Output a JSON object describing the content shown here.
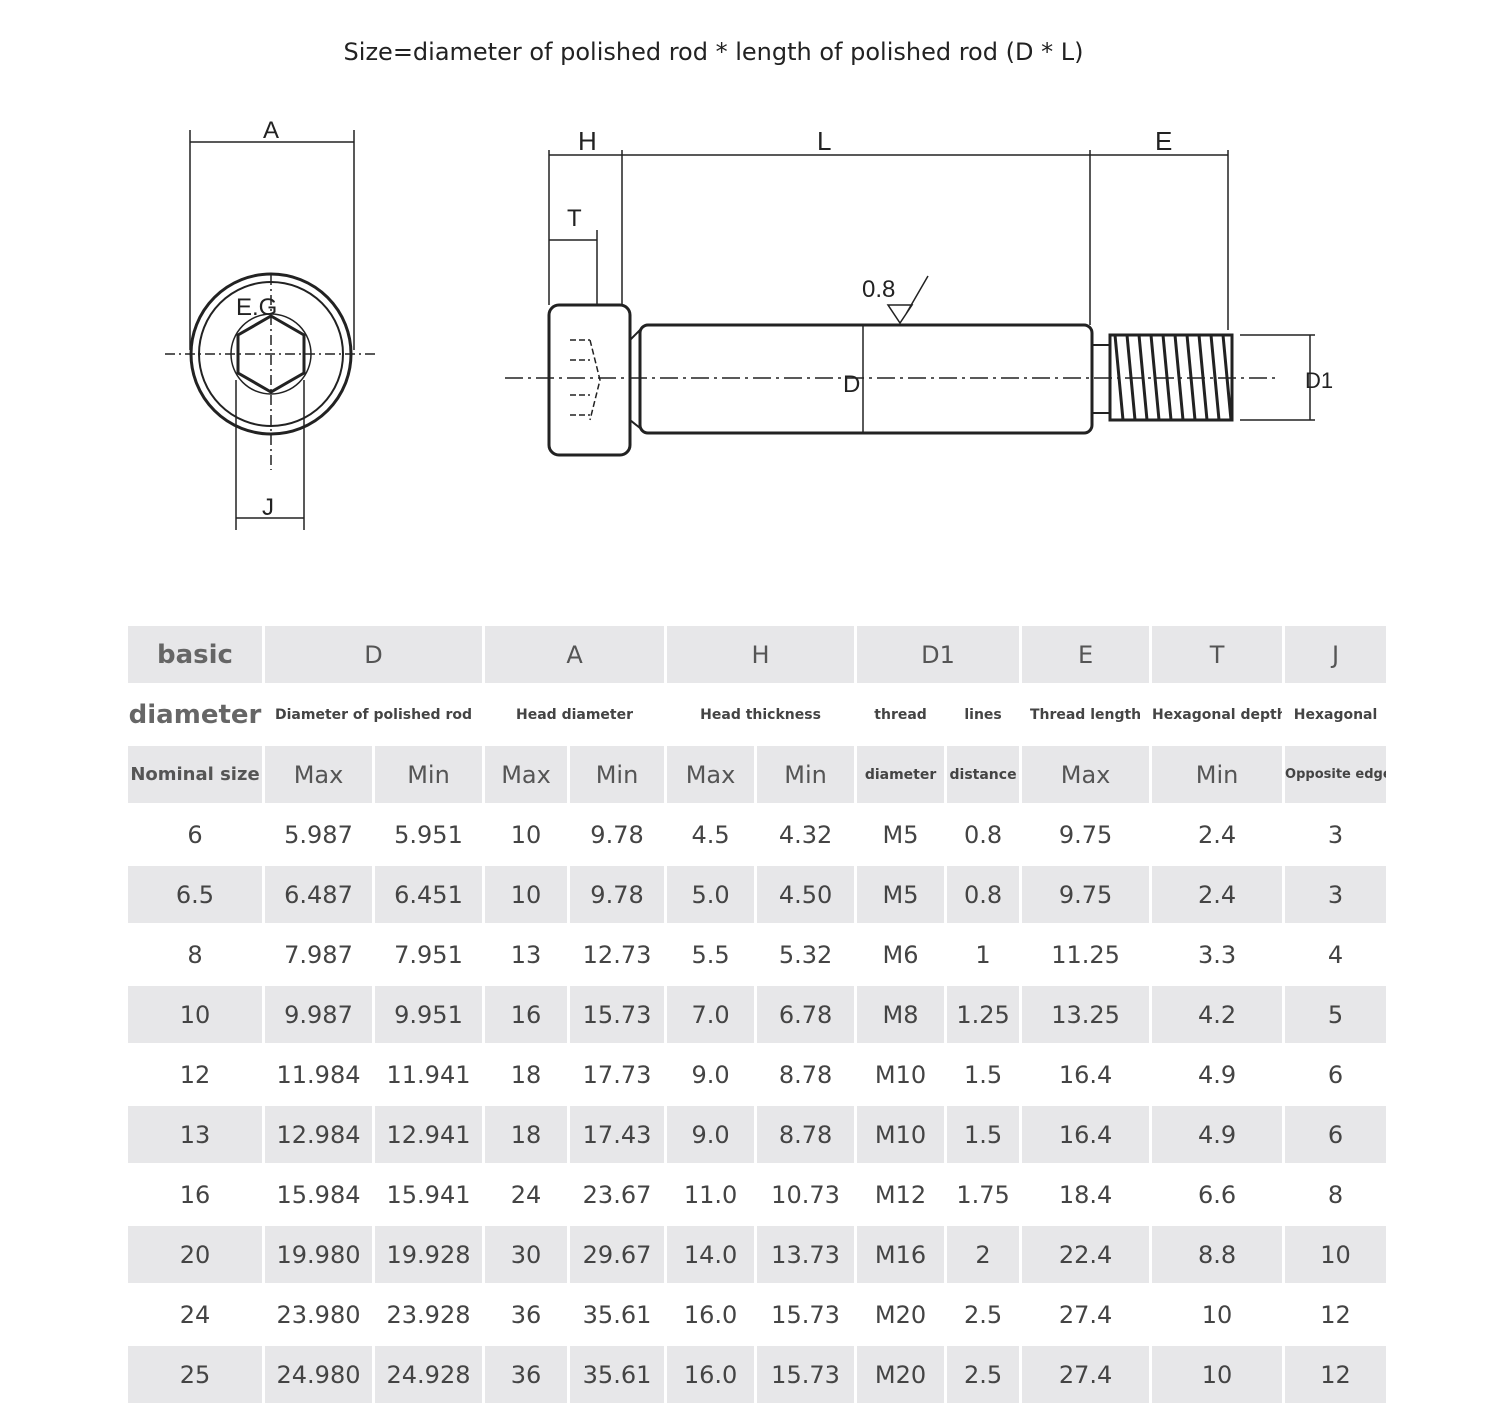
{
  "title": "Size=diameter of polished rod * length of polished rod (D * L)",
  "drawing": {
    "front_view": {
      "label_A": "A",
      "label_EG": "E.G",
      "label_J": "J"
    },
    "side_view": {
      "label_H": "H",
      "label_L": "L",
      "label_E": "E",
      "label_T": "T",
      "roughness": "0.8",
      "label_D": "D",
      "label_D1": "D1"
    }
  },
  "table": {
    "header1": [
      "basic",
      "D",
      "A",
      "H",
      "D1",
      "E",
      "T",
      "J"
    ],
    "header2": [
      "diameter",
      "Diameter of polished rod",
      "Head diameter",
      "Head thickness",
      "thread",
      "lines",
      "Thread length",
      "Hexagonal depth",
      "Hexagonal"
    ],
    "header3": [
      "Nominal size",
      "Max",
      "Min",
      "Max",
      "Min",
      "Max",
      "Min",
      "diameter",
      "distance",
      "Max",
      "Min",
      "Opposite edge"
    ],
    "rows": [
      [
        "6",
        "5.987",
        "5.951",
        "10",
        "9.78",
        "4.5",
        "4.32",
        "M5",
        "0.8",
        "9.75",
        "2.4",
        "3"
      ],
      [
        "6.5",
        "6.487",
        "6.451",
        "10",
        "9.78",
        "5.0",
        "4.50",
        "M5",
        "0.8",
        "9.75",
        "2.4",
        "3"
      ],
      [
        "8",
        "7.987",
        "7.951",
        "13",
        "12.73",
        "5.5",
        "5.32",
        "M6",
        "1",
        "11.25",
        "3.3",
        "4"
      ],
      [
        "10",
        "9.987",
        "9.951",
        "16",
        "15.73",
        "7.0",
        "6.78",
        "M8",
        "1.25",
        "13.25",
        "4.2",
        "5"
      ],
      [
        "12",
        "11.984",
        "11.941",
        "18",
        "17.73",
        "9.0",
        "8.78",
        "M10",
        "1.5",
        "16.4",
        "4.9",
        "6"
      ],
      [
        "13",
        "12.984",
        "12.941",
        "18",
        "17.43",
        "9.0",
        "8.78",
        "M10",
        "1.5",
        "16.4",
        "4.9",
        "6"
      ],
      [
        "16",
        "15.984",
        "15.941",
        "24",
        "23.67",
        "11.0",
        "10.73",
        "M12",
        "1.75",
        "18.4",
        "6.6",
        "8"
      ],
      [
        "20",
        "19.980",
        "19.928",
        "30",
        "29.67",
        "14.0",
        "13.73",
        "M16",
        "2",
        "22.4",
        "8.8",
        "10"
      ],
      [
        "24",
        "23.980",
        "23.928",
        "36",
        "35.61",
        "16.0",
        "15.73",
        "M20",
        "2.5",
        "27.4",
        "10",
        "12"
      ],
      [
        "25",
        "24.980",
        "24.928",
        "36",
        "35.61",
        "16.0",
        "15.73",
        "M20",
        "2.5",
        "27.4",
        "10",
        "12"
      ]
    ]
  }
}
